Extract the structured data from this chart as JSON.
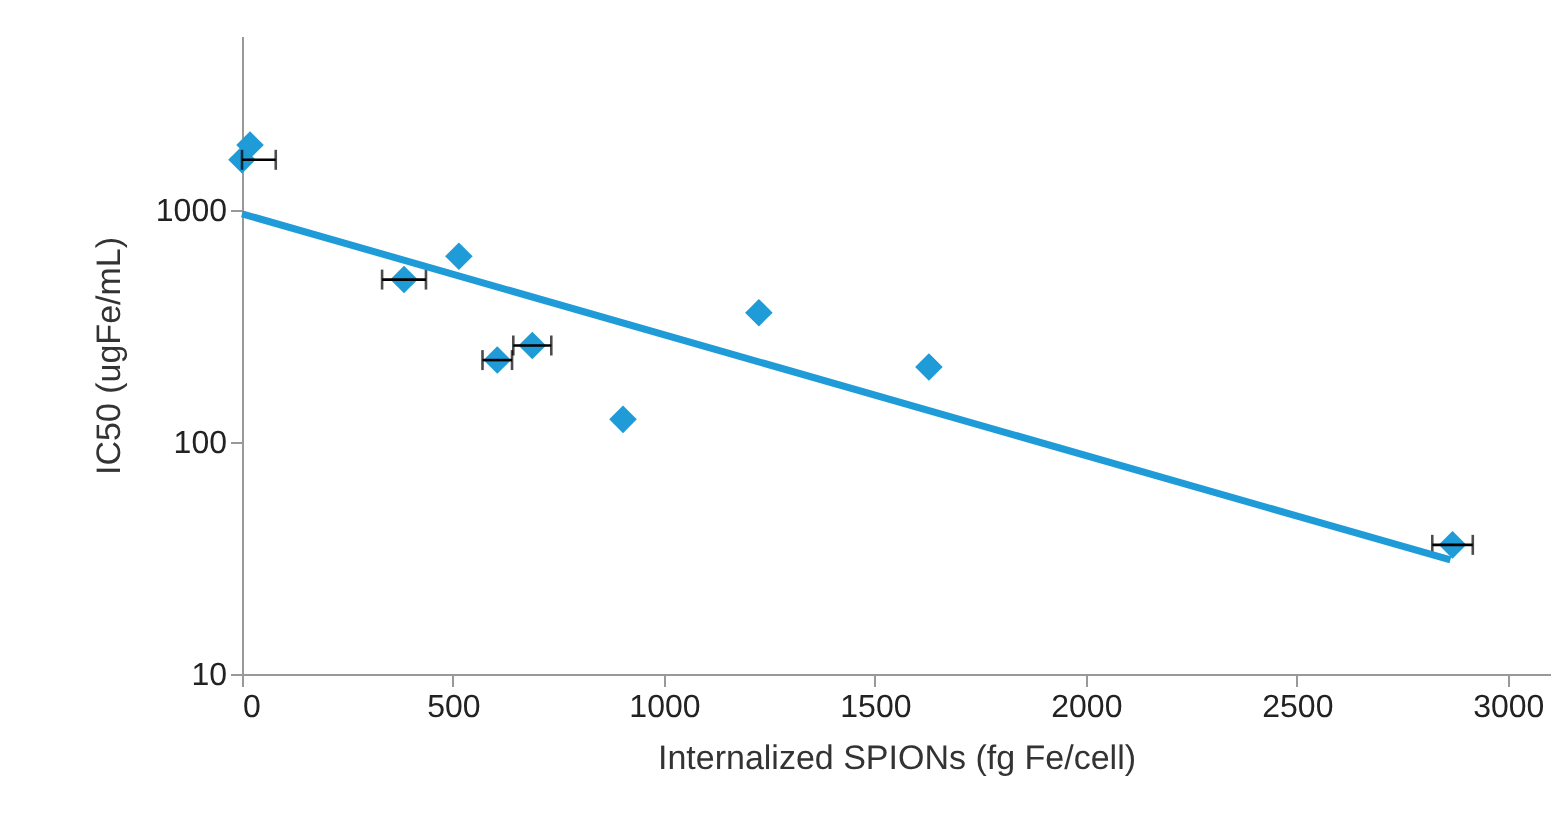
{
  "chart_data": {
    "type": "scatter",
    "xlabel": "Internalized  SPIONs (fg Fe/cell)",
    "ylabel": "IC50 (ugFe/mL)",
    "log": "y",
    "xlim": [
      0,
      3100
    ],
    "xticks": [
      0,
      500,
      1000,
      1500,
      2000,
      2500,
      3000
    ],
    "ylim": [
      10,
      5600
    ],
    "yticks": [
      10,
      100,
      1000
    ],
    "grid": false,
    "series": [
      {
        "color": "#1f9bd7",
        "marker": "diamond",
        "x": [
          0,
          19,
          384,
          514,
          605,
          688,
          903,
          1225,
          1628,
          2869
        ],
        "values": [
          1640,
          1900,
          500,
          630,
          225,
          260,
          125,
          360,
          210,
          36
        ],
        "xerrors": [
          [
            0,
            80
          ],
          null,
          52,
          null,
          35,
          45,
          null,
          null,
          null,
          48
        ]
      },
      {
        "type": "line",
        "color": "#1f9bd7",
        "marker": "none",
        "x": [
          0,
          2864
        ],
        "values": [
          960,
          31
        ]
      }
    ]
  }
}
